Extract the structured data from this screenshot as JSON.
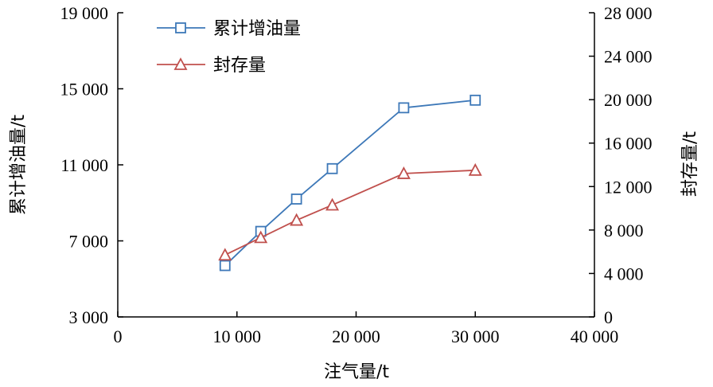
{
  "chart_data": {
    "type": "line",
    "xlabel": "注气量/t",
    "ylabel_left": "累计增油量/t",
    "ylabel_right": "封存量/t",
    "xlim": [
      0,
      40000
    ],
    "ylim_left": [
      3000,
      19000
    ],
    "ylim_right": [
      0,
      28000
    ],
    "x_ticks": [
      0,
      10000,
      20000,
      30000,
      40000
    ],
    "x_tick_labels": [
      "0",
      "10 000",
      "20 000",
      "30 000",
      "40 000"
    ],
    "y_left_ticks": [
      3000,
      7000,
      11000,
      15000,
      19000
    ],
    "y_left_tick_labels": [
      "3 000",
      "7 000",
      "11 000",
      "15 000",
      "19 000"
    ],
    "y_right_ticks": [
      0,
      4000,
      8000,
      12000,
      16000,
      20000,
      24000,
      28000
    ],
    "y_right_tick_labels": [
      "0",
      "4 000",
      "8 000",
      "12 000",
      "16 000",
      "20 000",
      "24 000",
      "28 000"
    ],
    "grid": false,
    "legend_position": "top-left",
    "series": [
      {
        "name": "累计增油量",
        "axis": "left",
        "marker": "square",
        "color": "#3d78b8",
        "x": [
          9000,
          12000,
          15000,
          18000,
          24000,
          30000
        ],
        "y": [
          5700,
          7500,
          9200,
          10800,
          14000,
          14400
        ]
      },
      {
        "name": "封存量",
        "axis": "right",
        "marker": "triangle",
        "color": "#c0504d",
        "x": [
          9000,
          12000,
          15000,
          18000,
          24000,
          30000
        ],
        "y": [
          5700,
          7300,
          8900,
          10300,
          13200,
          13500
        ]
      }
    ]
  }
}
